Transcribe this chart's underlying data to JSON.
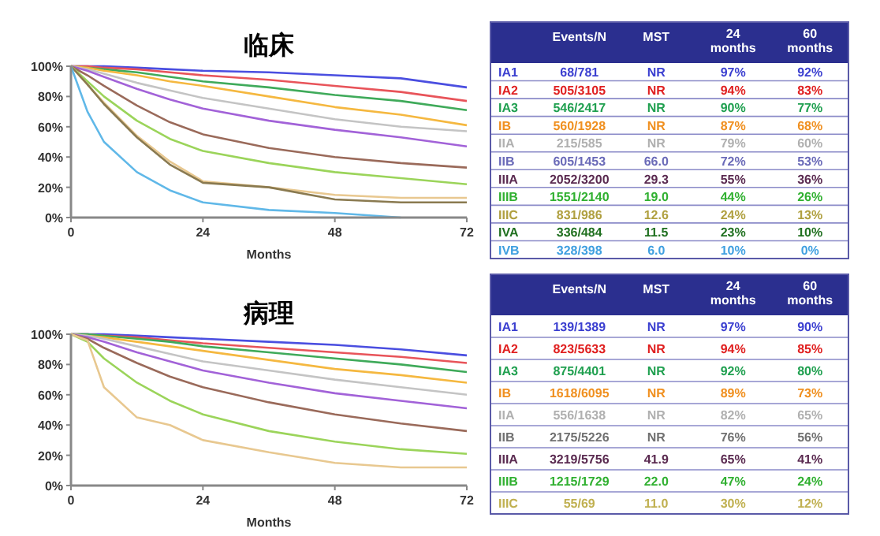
{
  "chart_data": [
    {
      "type": "line",
      "title": "临床",
      "xlabel": "Months",
      "x": [
        0,
        3,
        6,
        12,
        18,
        24,
        36,
        48,
        60,
        72
      ],
      "xlim": [
        0,
        72
      ],
      "xticks": [
        0,
        24,
        48,
        72
      ],
      "ylim": [
        0,
        100
      ],
      "yticks": [
        {
          "value": 0,
          "label": "0%"
        },
        {
          "value": 20,
          "label": "20%"
        },
        {
          "value": 40,
          "label": "40%"
        },
        {
          "value": 60,
          "label": "60%"
        },
        {
          "value": 80,
          "label": "80%"
        },
        {
          "value": 100,
          "label": "100%"
        }
      ],
      "series": [
        {
          "color": "#4a4ee0",
          "values": [
            100,
            100,
            100,
            99,
            98,
            97,
            96,
            94,
            92,
            86
          ]
        },
        {
          "color": "#e8545a",
          "values": [
            100,
            100,
            99,
            98,
            96,
            94,
            91,
            87,
            83,
            77
          ]
        },
        {
          "color": "#3faa5a",
          "values": [
            100,
            99,
            98,
            96,
            93,
            90,
            86,
            81,
            77,
            71
          ]
        },
        {
          "color": "#f5b840",
          "values": [
            100,
            99,
            97,
            94,
            90,
            87,
            80,
            73,
            68,
            61
          ]
        },
        {
          "color": "#c4c4c4",
          "values": [
            100,
            98,
            95,
            89,
            84,
            79,
            72,
            65,
            60,
            57
          ]
        },
        {
          "color": "#a262d8",
          "values": [
            100,
            97,
            93,
            85,
            78,
            72,
            64,
            58,
            53,
            47
          ]
        },
        {
          "color": "#9a6a5a",
          "values": [
            100,
            94,
            87,
            74,
            63,
            55,
            46,
            40,
            36,
            33
          ]
        },
        {
          "color": "#9bd45a",
          "values": [
            100,
            90,
            80,
            64,
            52,
            44,
            36,
            30,
            26,
            22
          ]
        },
        {
          "color": "#e8c890",
          "values": [
            100,
            88,
            76,
            54,
            37,
            24,
            20,
            15,
            13,
            13
          ]
        },
        {
          "color": "#8a7a50",
          "values": [
            100,
            88,
            75,
            53,
            35,
            23,
            20,
            12,
            10,
            10
          ]
        },
        {
          "color": "#60b8e8",
          "values": [
            100,
            70,
            50,
            30,
            18,
            10,
            5,
            3,
            0,
            null
          ]
        }
      ]
    },
    {
      "type": "other",
      "categories": [
        "Events/N",
        "MST",
        "24 months",
        "60 months"
      ],
      "y_categories": [
        "IA1",
        "IA2",
        "IA3",
        "IB",
        "IIA",
        "IIB",
        "IIIA",
        "IIIB",
        "IIIC",
        "IVA",
        "IVB"
      ],
      "colors": [
        "#2b2f8f",
        "#3b3fd0",
        "#e02020",
        "#20a050",
        "#f09020",
        "#b0b0b0",
        "#6a6ab8",
        "#5a2a50",
        "#30b030",
        "#b0a040",
        "#207020",
        "#40a0e0"
      ],
      "cell_labels": [
        [
          "68/781",
          "NR",
          "97%",
          "92%"
        ],
        [
          "505/3105",
          "NR",
          "94%",
          "83%"
        ],
        [
          "546/2417",
          "NR",
          "90%",
          "77%"
        ],
        [
          "560/1928",
          "NR",
          "87%",
          "68%"
        ],
        [
          "215/585",
          "NR",
          "79%",
          "60%"
        ],
        [
          "605/1453",
          "66.0",
          "72%",
          "53%"
        ],
        [
          "2052/3200",
          "29.3",
          "55%",
          "36%"
        ],
        [
          "1551/2140",
          "19.0",
          "44%",
          "26%"
        ],
        [
          "831/986",
          "12.6",
          "24%",
          "13%"
        ],
        [
          "336/484",
          "11.5",
          "23%",
          "10%"
        ],
        [
          "328/398",
          "6.0",
          "10%",
          "0%"
        ]
      ]
    },
    {
      "type": "line",
      "title": "病理",
      "xlabel": "Months",
      "x": [
        0,
        3,
        6,
        12,
        18,
        24,
        36,
        48,
        60,
        72
      ],
      "xlim": [
        0,
        72
      ],
      "xticks": [
        0,
        24,
        48,
        72
      ],
      "ylim": [
        0,
        100
      ],
      "yticks": [
        {
          "value": 0,
          "label": "0%"
        },
        {
          "value": 20,
          "label": "20%"
        },
        {
          "value": 40,
          "label": "40%"
        },
        {
          "value": 60,
          "label": "60%"
        },
        {
          "value": 80,
          "label": "80%"
        },
        {
          "value": 100,
          "label": "100%"
        }
      ],
      "series": [
        {
          "color": "#4a4ee0",
          "values": [
            100,
            100,
            100,
            99,
            98,
            97,
            95,
            93,
            90,
            86
          ]
        },
        {
          "color": "#e8545a",
          "values": [
            100,
            100,
            99,
            98,
            96,
            94,
            91,
            88,
            85,
            81
          ]
        },
        {
          "color": "#3faa5a",
          "values": [
            100,
            100,
            99,
            97,
            95,
            92,
            88,
            84,
            80,
            75
          ]
        },
        {
          "color": "#f5b840",
          "values": [
            100,
            99,
            98,
            95,
            92,
            89,
            83,
            77,
            73,
            68
          ]
        },
        {
          "color": "#c4c4c4",
          "values": [
            100,
            99,
            97,
            92,
            87,
            82,
            76,
            70,
            65,
            60
          ]
        },
        {
          "color": "#a262d8",
          "values": [
            100,
            98,
            95,
            88,
            82,
            76,
            68,
            61,
            56,
            51
          ]
        },
        {
          "color": "#9a6a5a",
          "values": [
            100,
            97,
            91,
            81,
            72,
            65,
            55,
            47,
            41,
            36
          ]
        },
        {
          "color": "#9bd45a",
          "values": [
            100,
            95,
            84,
            68,
            56,
            47,
            36,
            29,
            24,
            21
          ]
        },
        {
          "color": "#e8c890",
          "values": [
            100,
            96,
            65,
            45,
            40,
            30,
            22,
            15,
            12,
            12
          ]
        }
      ]
    },
    {
      "type": "other",
      "categories": [
        "Events/N",
        "MST",
        "24 months",
        "60 months"
      ],
      "y_categories": [
        "IA1",
        "IA2",
        "IA3",
        "IB",
        "IIA",
        "IIB",
        "IIIA",
        "IIIB",
        "IIIC"
      ],
      "colors": [
        "#2b2f8f",
        "#3b3fd0",
        "#e02020",
        "#20a050",
        "#f09020",
        "#b0b0b0",
        "#707070",
        "#5a2a50",
        "#30b030",
        "#c0b050"
      ],
      "cell_labels": [
        [
          "139/1389",
          "NR",
          "97%",
          "90%"
        ],
        [
          "823/5633",
          "NR",
          "94%",
          "85%"
        ],
        [
          "875/4401",
          "NR",
          "92%",
          "80%"
        ],
        [
          "1618/6095",
          "NR",
          "89%",
          "73%"
        ],
        [
          "556/1638",
          "NR",
          "82%",
          "65%"
        ],
        [
          "2175/5226",
          "NR",
          "76%",
          "56%"
        ],
        [
          "3219/5756",
          "41.9",
          "65%",
          "41%"
        ],
        [
          "1215/1729",
          "22.0",
          "47%",
          "24%"
        ],
        [
          "55/69",
          "11.0",
          "30%",
          "12%"
        ]
      ]
    }
  ]
}
